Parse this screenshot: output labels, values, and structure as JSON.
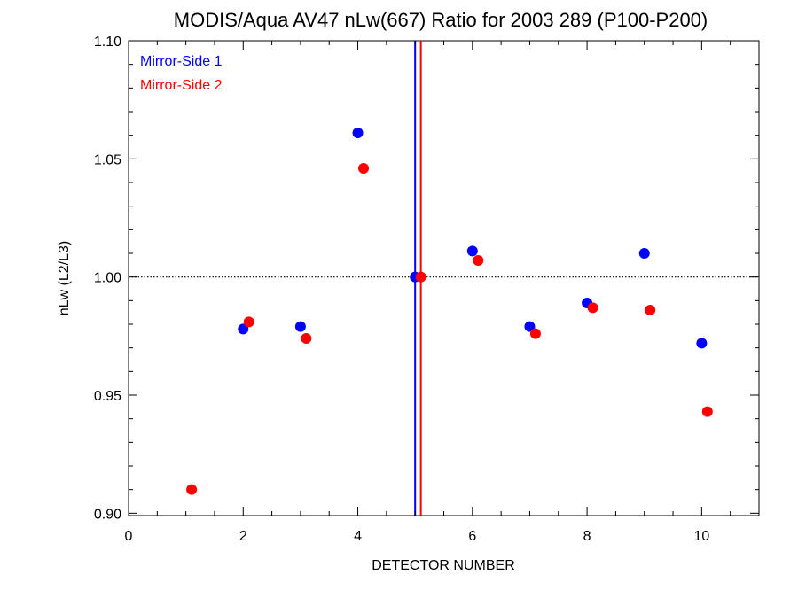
{
  "chart_data": {
    "type": "scatter",
    "title": "MODIS/Aqua AV47 nLw(667) Ratio for 2003 289 (P100-P200)",
    "xlabel": "DETECTOR NUMBER",
    "ylabel": "nLw (L2/L3)",
    "xlim": [
      0,
      11
    ],
    "ylim": [
      0.899,
      1.1
    ],
    "xticks": [
      0,
      2,
      4,
      6,
      8,
      10
    ],
    "xtick_labels": [
      "0",
      "2",
      "4",
      "6",
      "8",
      "10"
    ],
    "yticks": [
      0.9,
      0.95,
      1.0,
      1.05,
      1.1
    ],
    "ytick_labels": [
      "0.90",
      "0.95",
      "1.00",
      "1.05",
      "1.10"
    ],
    "reference_line_y": 1.0,
    "vertical_lines": [
      {
        "series": "Mirror-Side 1",
        "x": 5.0,
        "color": "#0000ff"
      },
      {
        "series": "Mirror-Side 2",
        "x": 5.1,
        "color": "#ff0000"
      }
    ],
    "legend_position": "top-left",
    "series": [
      {
        "name": "Mirror-Side 1",
        "color": "#0000ff",
        "x": [
          2,
          3,
          4,
          5,
          6,
          7,
          8,
          9,
          10
        ],
        "y": [
          0.978,
          0.979,
          1.061,
          1.0,
          1.011,
          0.979,
          0.989,
          1.01,
          0.972
        ]
      },
      {
        "name": "Mirror-Side 2",
        "color": "#ff0000",
        "x": [
          1.1,
          2.1,
          3.1,
          4.1,
          5.1,
          6.1,
          7.1,
          8.1,
          9.1,
          10.1
        ],
        "y": [
          0.91,
          0.981,
          0.974,
          1.046,
          1.0,
          1.007,
          0.976,
          0.987,
          0.986,
          0.943
        ]
      }
    ]
  }
}
